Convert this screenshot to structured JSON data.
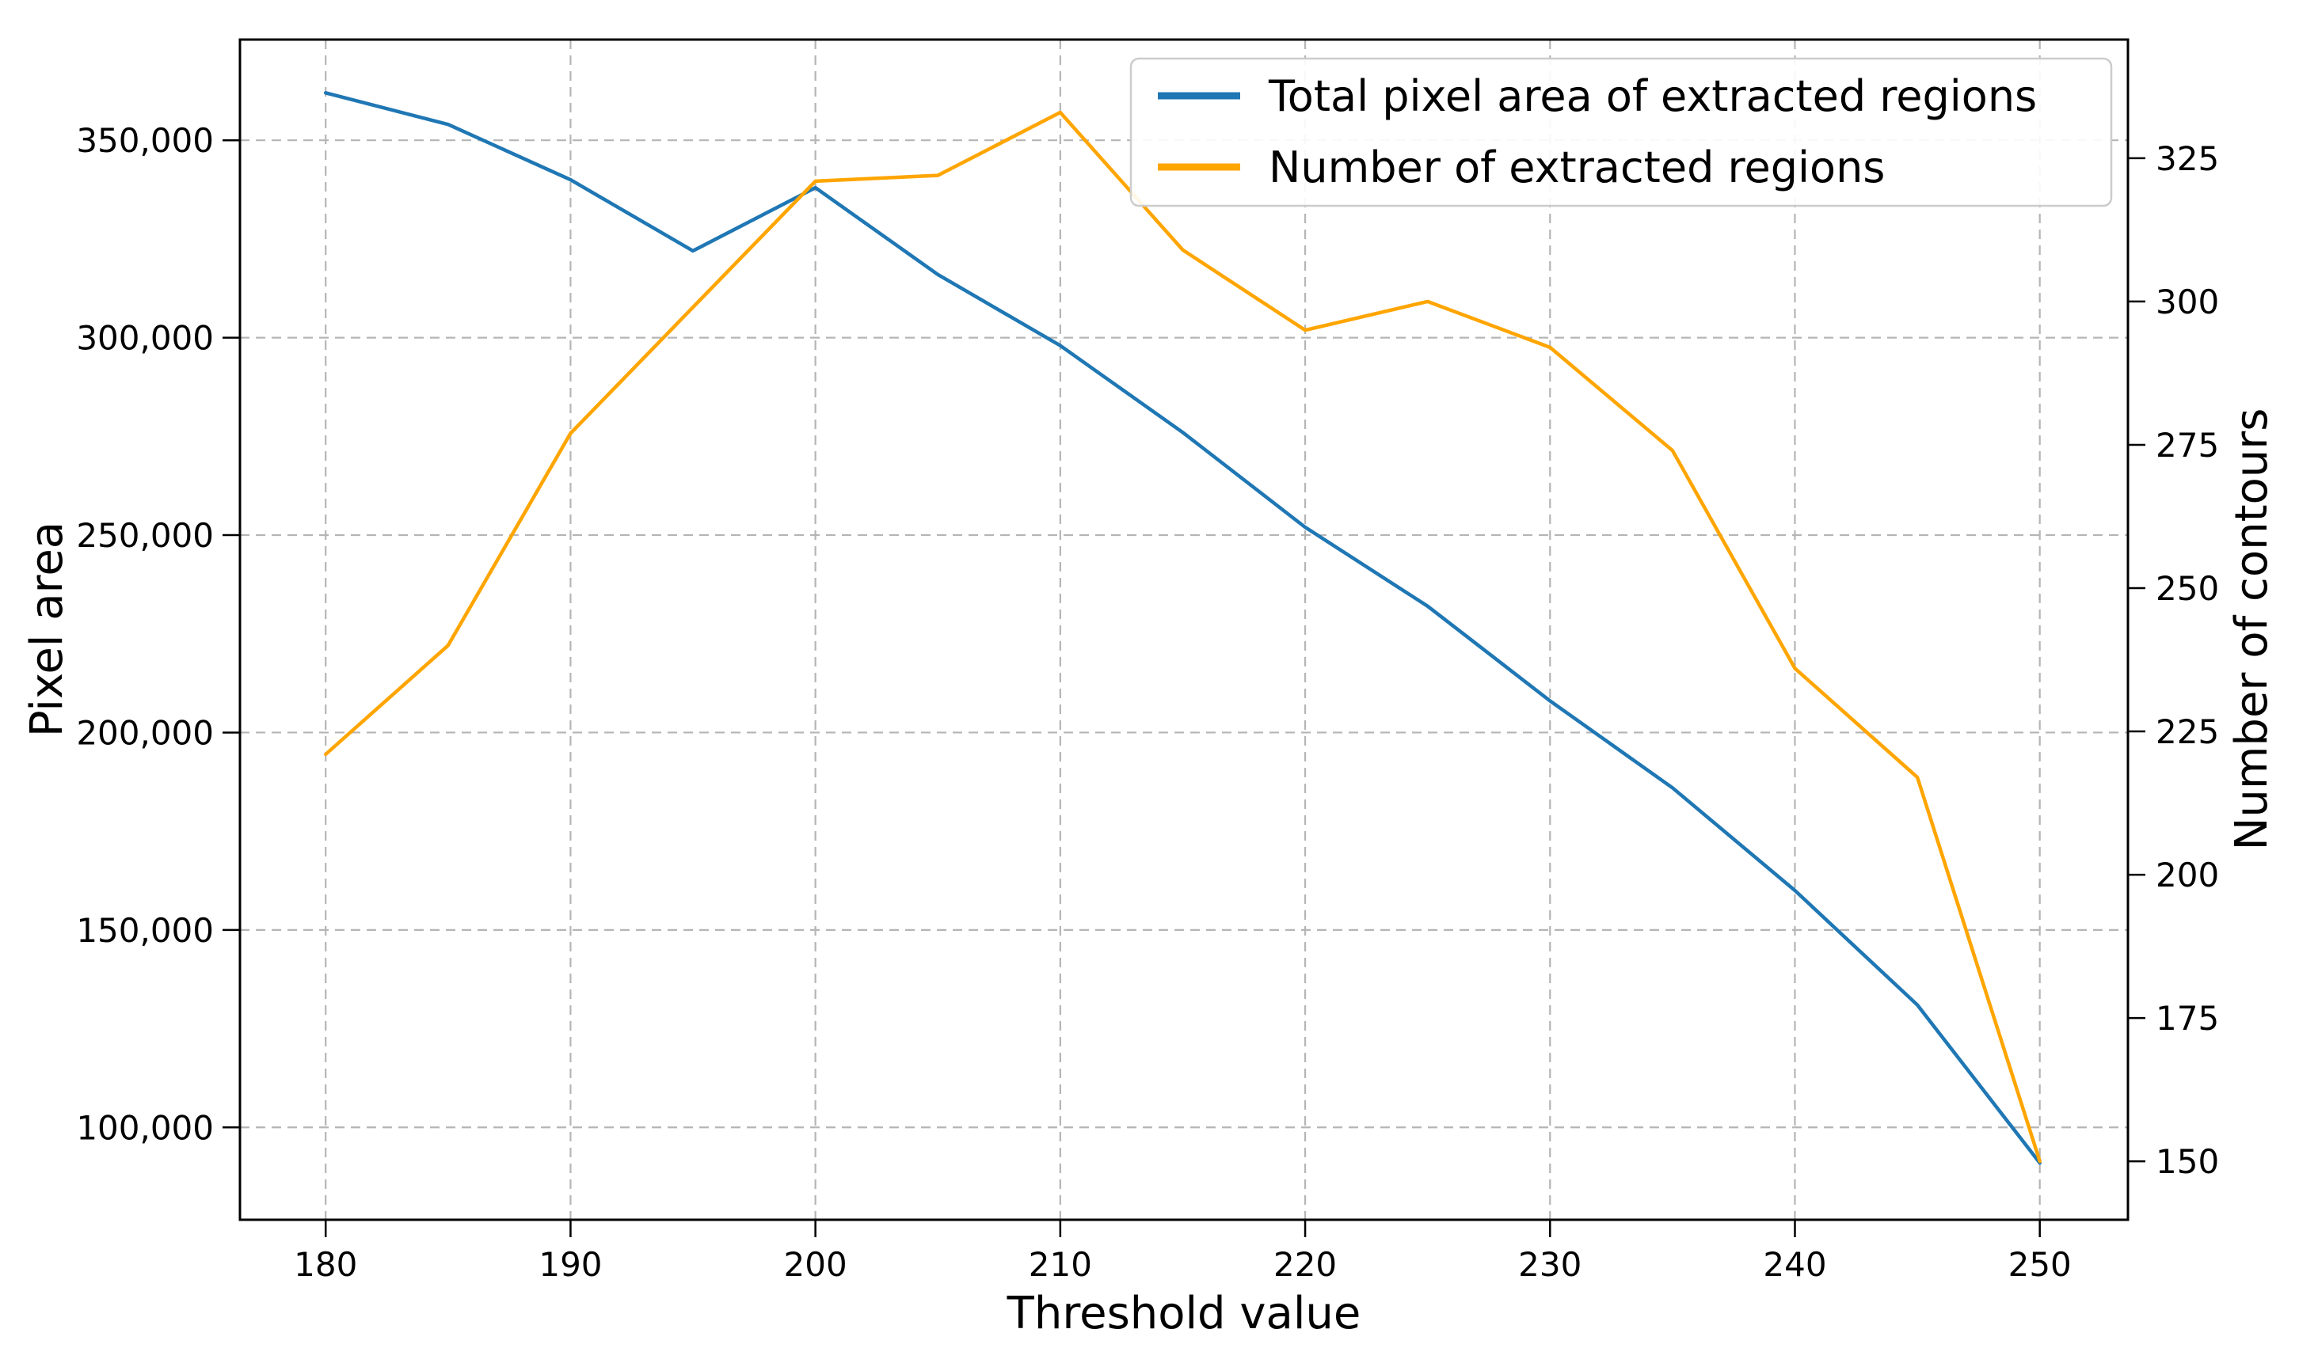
{
  "figure": {
    "background": "#ffffff"
  },
  "chart_data": {
    "type": "line",
    "title": "",
    "xlabel": "Threshold value",
    "x": [
      180,
      185,
      190,
      195,
      200,
      205,
      210,
      215,
      220,
      225,
      230,
      235,
      240,
      245,
      250
    ],
    "x_ticks": [
      180,
      190,
      200,
      210,
      220,
      230,
      240,
      250
    ],
    "xlim": [
      176.5,
      253.6
    ],
    "series": [
      {
        "name": "Total pixel area of extracted regions",
        "axis": "left",
        "color": "#1f77b4",
        "values": [
          362000,
          354000,
          340000,
          322000,
          338000,
          316000,
          298000,
          276000,
          252000,
          232000,
          208000,
          186000,
          160000,
          131000,
          91000
        ]
      },
      {
        "name": "Number of extracted regions",
        "axis": "right",
        "color": "#ffa500",
        "values": [
          221,
          240,
          277,
          299,
          321,
          322,
          333,
          309,
          295,
          300,
          292,
          274,
          236,
          217,
          150
        ]
      }
    ],
    "left_axis": {
      "label": "Pixel area",
      "ticks": [
        100000,
        150000,
        200000,
        250000,
        300000,
        350000
      ],
      "range": [
        76600,
        375500
      ],
      "tick_format": "comma",
      "color": "#000000"
    },
    "right_axis": {
      "label": "Number of contours",
      "ticks": [
        150,
        175,
        200,
        225,
        250,
        275,
        300,
        325
      ],
      "range": [
        139.8,
        345.7
      ],
      "tick_format": "plain",
      "color": "#ffa500"
    },
    "grid": {
      "on": true,
      "style": "dashed",
      "color": "#b5b5b5"
    },
    "legend": {
      "position": "upper right"
    }
  }
}
